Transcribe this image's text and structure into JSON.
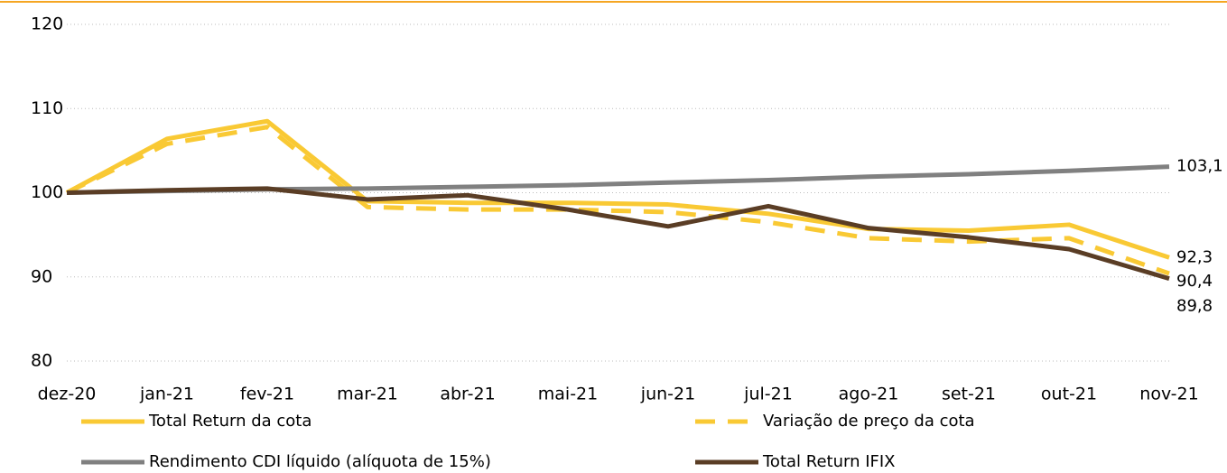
{
  "chart_data": {
    "type": "line",
    "categories": [
      "dez-20",
      "jan-21",
      "fev-21",
      "mar-21",
      "abr-21",
      "mai-21",
      "jun-21",
      "jul-21",
      "ago-21",
      "set-21",
      "out-21",
      "nov-21"
    ],
    "ylim": [
      80,
      120
    ],
    "yticks": [
      80,
      90,
      100,
      110,
      120
    ],
    "grid": true,
    "series": [
      {
        "name": "Total Return da cota",
        "color": "#f9c934",
        "dash": false,
        "values": [
          100,
          106.4,
          108.5,
          99.0,
          98.8,
          98.8,
          98.6,
          97.5,
          95.7,
          95.5,
          96.2,
          92.3
        ],
        "value_labels": [
          null,
          null,
          null,
          null,
          null,
          null,
          null,
          null,
          null,
          null,
          null,
          "92,3"
        ]
      },
      {
        "name": "Variação de preço da cota",
        "color": "#f9c934",
        "dash": true,
        "values": [
          100,
          105.8,
          107.8,
          98.3,
          98.0,
          98.0,
          97.7,
          96.5,
          94.6,
          94.2,
          94.6,
          90.4
        ],
        "value_labels": [
          null,
          null,
          null,
          null,
          null,
          null,
          null,
          null,
          null,
          null,
          null,
          "90,4"
        ]
      },
      {
        "name": "Rendimento CDI líquido (alíquota de 15%)",
        "color": "#808080",
        "dash": false,
        "values": [
          100,
          100.2,
          100.4,
          100.5,
          100.7,
          100.9,
          101.2,
          101.5,
          101.9,
          102.2,
          102.6,
          103.1
        ],
        "value_labels": [
          null,
          null,
          null,
          null,
          null,
          null,
          null,
          null,
          null,
          null,
          null,
          "103,1"
        ]
      },
      {
        "name": "Total Return IFIX",
        "color": "#5a3d25",
        "dash": false,
        "values": [
          100,
          100.3,
          100.5,
          99.2,
          99.7,
          98.0,
          96.0,
          98.4,
          95.8,
          94.7,
          93.3,
          89.8
        ],
        "value_labels": [
          null,
          null,
          null,
          null,
          null,
          null,
          null,
          null,
          null,
          null,
          null,
          "89,8"
        ]
      }
    ]
  }
}
